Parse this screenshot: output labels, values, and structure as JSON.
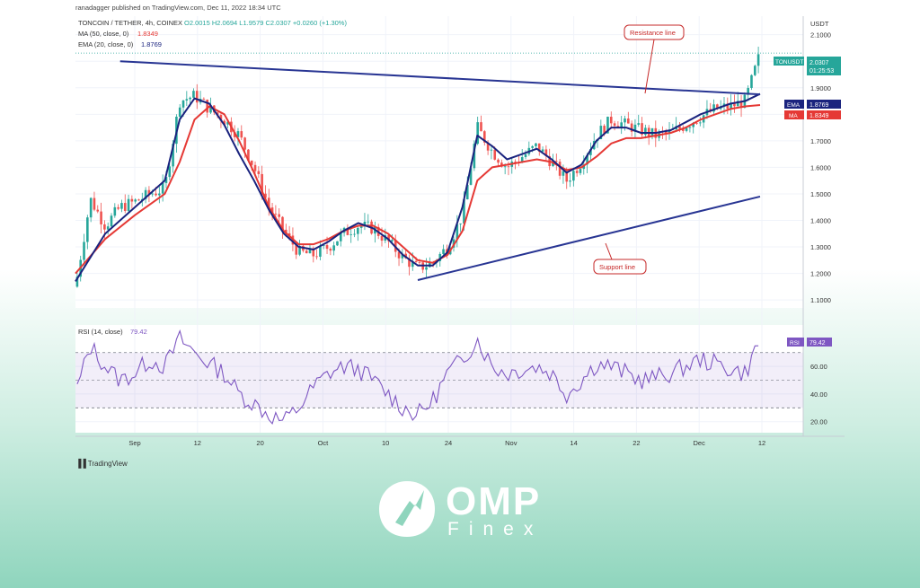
{
  "publisher": "ranadagger published on TradingView.com, Dec 11, 2022 18:34 UTC",
  "legend": {
    "symbol": "TONCOIN / TETHER, 4h, COINEX",
    "ohlc": "O2.0015  H2.0694  L1.9579  C2.0307  +0.0260 (+1.30%)",
    "ma_label": "MA (50, close, 0)",
    "ma_value": "1.8349",
    "ema_label": "EMA (20, close, 0)",
    "ema_value": "1.8769",
    "rsi_label": "RSI (14, close)",
    "rsi_value": "79.42"
  },
  "price_tags": {
    "currency": "USDT",
    "ticker": "TONUSDT",
    "last": "2.0307",
    "countdown": "01:25:53",
    "ema_tag": "EMA",
    "ema": "1.8769",
    "ma_tag": "MA",
    "ma": "1.8349",
    "rsi_tag": "RSI",
    "rsi": "79.42"
  },
  "annotations": {
    "resistance": "Resistance line",
    "support": "Support line"
  },
  "tradingview_logo": "TradingView",
  "brand": {
    "name": "OMP",
    "sub": "Finex"
  },
  "colors": {
    "up": "#26a69a",
    "down": "#ef5350",
    "ema": "#1a237e",
    "ma": "#e53935",
    "rsi": "#7e57c2",
    "trendline": "#283593",
    "annotation": "#c62828",
    "ticker_bg": "#26a69a"
  },
  "chart_data": {
    "type": "candlestick",
    "price_axis": {
      "ticks": [
        "2.1000",
        "2.0000",
        "1.9000",
        "1.8000",
        "1.7000",
        "1.6000",
        "1.5000",
        "1.4000",
        "1.3000",
        "1.2000",
        "1.1000"
      ],
      "range": [
        1.07,
        2.17
      ]
    },
    "rsi_axis": {
      "ticks": [
        "60.00",
        "40.00",
        "20.00"
      ],
      "range": [
        12,
        90
      ],
      "band": [
        30,
        70
      ]
    },
    "time_axis": [
      "Sep",
      "12",
      "20",
      "Oct",
      "10",
      "24",
      "Nov",
      "14",
      "22",
      "Dec",
      "12"
    ],
    "price_path": [
      [
        0,
        1.15
      ],
      [
        1,
        1.48
      ],
      [
        2,
        1.38
      ],
      [
        3,
        1.45
      ],
      [
        4,
        1.47
      ],
      [
        5,
        1.5
      ],
      [
        6,
        1.52
      ],
      [
        7,
        1.85
      ],
      [
        8,
        1.87
      ],
      [
        9,
        1.82
      ],
      [
        10,
        1.78
      ],
      [
        11,
        1.72
      ],
      [
        12,
        1.6
      ],
      [
        13,
        1.45
      ],
      [
        14,
        1.36
      ],
      [
        15,
        1.28
      ],
      [
        16,
        1.27
      ],
      [
        17,
        1.3
      ],
      [
        18,
        1.35
      ],
      [
        19,
        1.38
      ],
      [
        20,
        1.37
      ],
      [
        21,
        1.32
      ],
      [
        22,
        1.26
      ],
      [
        23,
        1.22
      ],
      [
        24,
        1.24
      ],
      [
        25,
        1.3
      ],
      [
        26,
        1.42
      ],
      [
        27,
        1.75
      ],
      [
        28,
        1.66
      ],
      [
        29,
        1.6
      ],
      [
        30,
        1.64
      ],
      [
        31,
        1.68
      ],
      [
        32,
        1.62
      ],
      [
        33,
        1.55
      ],
      [
        34,
        1.62
      ],
      [
        35,
        1.72
      ],
      [
        36,
        1.78
      ],
      [
        37,
        1.76
      ],
      [
        38,
        1.74
      ],
      [
        39,
        1.72
      ],
      [
        40,
        1.73
      ],
      [
        41,
        1.76
      ],
      [
        42,
        1.79
      ],
      [
        43,
        1.82
      ],
      [
        44,
        1.83
      ],
      [
        45,
        1.85
      ],
      [
        46,
        2.03
      ]
    ],
    "price_path_x_range": [
      0,
      46
    ],
    "ema": [
      [
        0,
        1.17
      ],
      [
        2,
        1.35
      ],
      [
        4,
        1.45
      ],
      [
        6,
        1.55
      ],
      [
        7,
        1.78
      ],
      [
        8,
        1.86
      ],
      [
        9,
        1.84
      ],
      [
        10,
        1.76
      ],
      [
        11,
        1.65
      ],
      [
        12,
        1.55
      ],
      [
        13,
        1.44
      ],
      [
        14,
        1.35
      ],
      [
        15,
        1.3
      ],
      [
        16,
        1.29
      ],
      [
        17,
        1.32
      ],
      [
        18,
        1.36
      ],
      [
        19,
        1.39
      ],
      [
        20,
        1.37
      ],
      [
        21,
        1.33
      ],
      [
        22,
        1.27
      ],
      [
        23,
        1.23
      ],
      [
        24,
        1.23
      ],
      [
        25,
        1.28
      ],
      [
        26,
        1.45
      ],
      [
        27,
        1.72
      ],
      [
        28,
        1.68
      ],
      [
        29,
        1.63
      ],
      [
        30,
        1.65
      ],
      [
        31,
        1.67
      ],
      [
        32,
        1.63
      ],
      [
        33,
        1.58
      ],
      [
        34,
        1.61
      ],
      [
        35,
        1.7
      ],
      [
        36,
        1.75
      ],
      [
        37,
        1.75
      ],
      [
        38,
        1.73
      ],
      [
        39,
        1.73
      ],
      [
        40,
        1.74
      ],
      [
        41,
        1.77
      ],
      [
        42,
        1.8
      ],
      [
        43,
        1.82
      ],
      [
        44,
        1.84
      ],
      [
        45,
        1.85
      ],
      [
        46,
        1.877
      ]
    ],
    "ma": [
      [
        0,
        1.2
      ],
      [
        2,
        1.33
      ],
      [
        4,
        1.42
      ],
      [
        6,
        1.5
      ],
      [
        7,
        1.62
      ],
      [
        8,
        1.78
      ],
      [
        9,
        1.83
      ],
      [
        10,
        1.8
      ],
      [
        11,
        1.7
      ],
      [
        12,
        1.58
      ],
      [
        13,
        1.45
      ],
      [
        14,
        1.36
      ],
      [
        15,
        1.31
      ],
      [
        16,
        1.31
      ],
      [
        17,
        1.33
      ],
      [
        18,
        1.36
      ],
      [
        19,
        1.38
      ],
      [
        20,
        1.38
      ],
      [
        21,
        1.35
      ],
      [
        22,
        1.3
      ],
      [
        23,
        1.25
      ],
      [
        24,
        1.24
      ],
      [
        25,
        1.27
      ],
      [
        26,
        1.36
      ],
      [
        27,
        1.55
      ],
      [
        28,
        1.6
      ],
      [
        29,
        1.61
      ],
      [
        30,
        1.62
      ],
      [
        31,
        1.63
      ],
      [
        32,
        1.62
      ],
      [
        33,
        1.59
      ],
      [
        34,
        1.6
      ],
      [
        35,
        1.64
      ],
      [
        36,
        1.69
      ],
      [
        37,
        1.71
      ],
      [
        38,
        1.71
      ],
      [
        39,
        1.72
      ],
      [
        40,
        1.73
      ],
      [
        41,
        1.75
      ],
      [
        42,
        1.78
      ],
      [
        43,
        1.8
      ],
      [
        44,
        1.82
      ],
      [
        45,
        1.83
      ],
      [
        46,
        1.835
      ]
    ],
    "rsi": [
      [
        0,
        40
      ],
      [
        1,
        75
      ],
      [
        2,
        60
      ],
      [
        3,
        50
      ],
      [
        4,
        55
      ],
      [
        5,
        65
      ],
      [
        6,
        60
      ],
      [
        7,
        80
      ],
      [
        8,
        70
      ],
      [
        9,
        62
      ],
      [
        10,
        55
      ],
      [
        11,
        40
      ],
      [
        12,
        33
      ],
      [
        13,
        25
      ],
      [
        14,
        20
      ],
      [
        15,
        30
      ],
      [
        16,
        45
      ],
      [
        17,
        55
      ],
      [
        18,
        60
      ],
      [
        19,
        58
      ],
      [
        20,
        50
      ],
      [
        21,
        40
      ],
      [
        22,
        30
      ],
      [
        23,
        25
      ],
      [
        24,
        35
      ],
      [
        25,
        55
      ],
      [
        26,
        65
      ],
      [
        27,
        80
      ],
      [
        28,
        60
      ],
      [
        29,
        55
      ],
      [
        30,
        58
      ],
      [
        31,
        60
      ],
      [
        32,
        55
      ],
      [
        33,
        40
      ],
      [
        34,
        50
      ],
      [
        35,
        62
      ],
      [
        36,
        60
      ],
      [
        37,
        55
      ],
      [
        38,
        50
      ],
      [
        39,
        52
      ],
      [
        40,
        55
      ],
      [
        41,
        60
      ],
      [
        42,
        65
      ],
      [
        43,
        62
      ],
      [
        44,
        58
      ],
      [
        45,
        55
      ],
      [
        46,
        79.42
      ]
    ],
    "resistance_line": {
      "from": [
        3,
        2.0
      ],
      "to": [
        46,
        1.875
      ]
    },
    "support_line": {
      "from": [
        23,
        1.175
      ],
      "to": [
        46,
        1.49
      ]
    }
  }
}
